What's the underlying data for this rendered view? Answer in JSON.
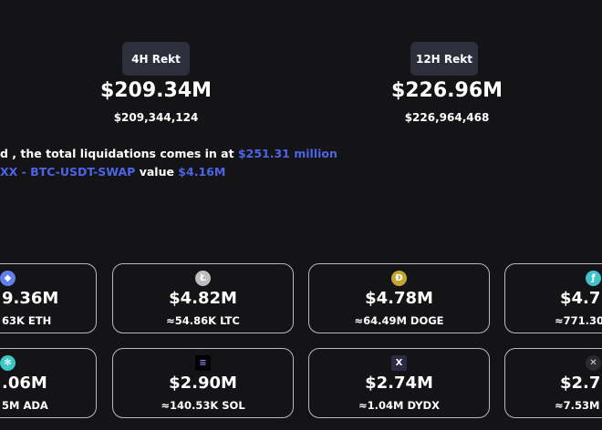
{
  "summary": [
    {
      "label": "4H Rekt",
      "value": "$209.34M",
      "exact": "$209,344,124"
    },
    {
      "label": "12H Rekt",
      "value": "$226.96M",
      "exact": "$226,964,468"
    }
  ],
  "info": {
    "line1_text": "d , the total liquidations comes in at ",
    "line1_value": "$251.31 million",
    "line2_link": "XX - BTC-USDT-SWAP",
    "line2_text": " value ",
    "line2_value": "$4.16M"
  },
  "colors": {
    "accent": "#4d63e8",
    "background": "#141417"
  },
  "coins": [
    {
      "icon": "ethereum-icon",
      "value": "9.36M",
      "amount": "63K ETH"
    },
    {
      "icon": "litecoin-icon",
      "value": "$4.82M",
      "amount": "≈54.86K LTC"
    },
    {
      "icon": "dogecoin-icon",
      "value": "$4.78M",
      "amount": "≈64.49M DOGE"
    },
    {
      "icon": "filecoin-icon",
      "value": "$4.7",
      "amount": "≈771.30"
    },
    {
      "icon": "cardano-icon",
      "value": ".06M",
      "amount": "5M ADA"
    },
    {
      "icon": "solana-icon",
      "value": "$2.90M",
      "amount": "≈140.53K SOL"
    },
    {
      "icon": "dydx-icon",
      "value": "$2.74M",
      "amount": "≈1.04M DYDX"
    },
    {
      "icon": "xrp-icon",
      "value": "$2.7",
      "amount": "≈7.53M"
    }
  ]
}
